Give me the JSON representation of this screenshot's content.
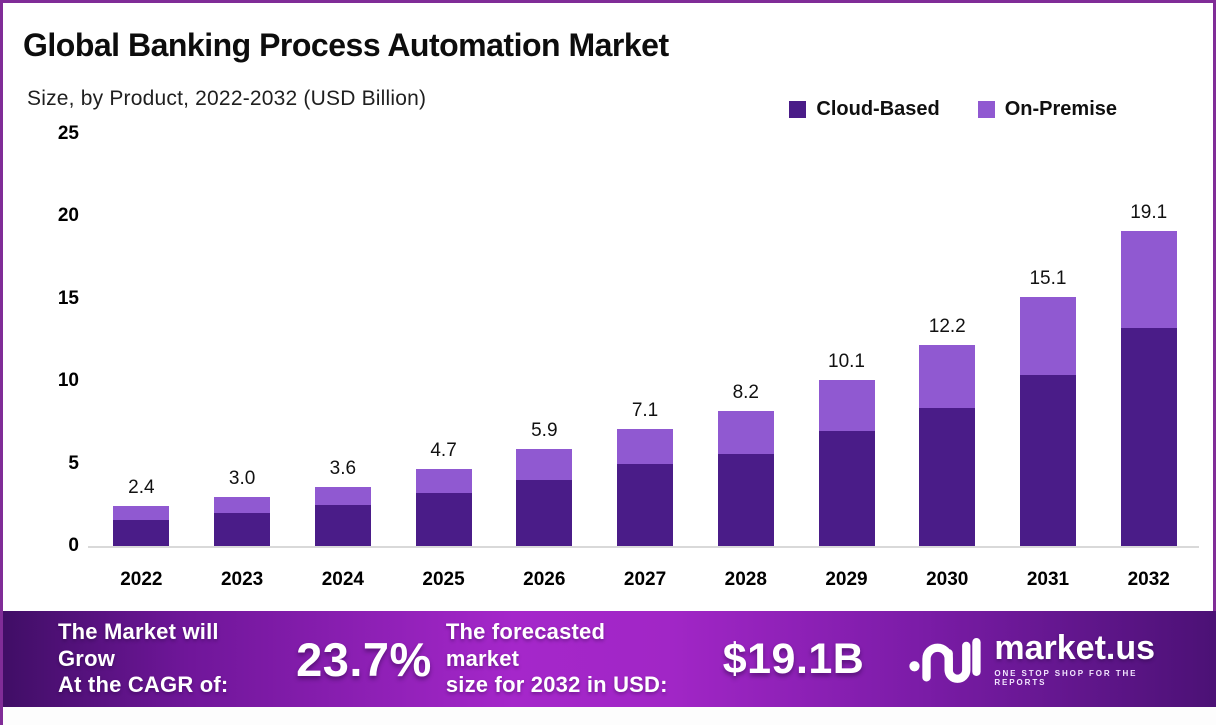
{
  "header": {
    "title": "Global Banking Process Automation Market",
    "subtitle": "Size, by Product, 2022-2032 (USD Billion)"
  },
  "colors": {
    "frame_border": "#802C97",
    "cloud_based": "#4A1C88",
    "on_premise": "#9059D1",
    "banner_left": "#400E66",
    "banner_center": "#A527CA",
    "banner_right": "#4B1175",
    "baseline": "#D9D9D9"
  },
  "legend": {
    "items": [
      {
        "label": "Cloud-Based",
        "color": "#4A1C88"
      },
      {
        "label": "On-Premise",
        "color": "#9059D1"
      }
    ]
  },
  "chart_data": {
    "type": "bar",
    "stacked": true,
    "title": "Global Banking Process Automation Market Size, by Product, 2022-2032 (USD Billion)",
    "categories": [
      "2022",
      "2023",
      "2024",
      "2025",
      "2026",
      "2027",
      "2028",
      "2029",
      "2030",
      "2031",
      "2032"
    ],
    "series": [
      {
        "name": "Cloud-Based",
        "color": "#4A1C88",
        "values": [
          1.6,
          2.0,
          2.5,
          3.2,
          4.0,
          5.0,
          5.6,
          7.0,
          8.4,
          10.4,
          13.2
        ]
      },
      {
        "name": "On-Premise",
        "color": "#9059D1",
        "values": [
          0.8,
          1.0,
          1.1,
          1.5,
          1.9,
          2.1,
          2.6,
          3.1,
          3.8,
          4.7,
          5.9
        ]
      }
    ],
    "totals": [
      2.4,
      3.0,
      3.6,
      4.7,
      5.9,
      7.1,
      8.2,
      10.1,
      12.2,
      15.1,
      19.1
    ],
    "total_labels": [
      "2.4",
      "3.0",
      "3.6",
      "4.7",
      "5.9",
      "7.1",
      "8.2",
      "10.1",
      "12.2",
      "15.1",
      "19.1"
    ],
    "xlabel": "",
    "ylabel": "",
    "ylim": [
      0,
      25
    ],
    "yticks": [
      25,
      20,
      15,
      10,
      5,
      0
    ],
    "grid": false,
    "legend_position": "top-right"
  },
  "banner": {
    "cagr_label_line1": "The Market will Grow",
    "cagr_label_line2": "At the CAGR of:",
    "cagr_value": "23.7%",
    "forecast_label_line1": "The forecasted market",
    "forecast_label_line2": "size for 2032 in USD:",
    "forecast_value": "$19.1B",
    "logo": {
      "name": "market.us",
      "tagline": "ONE STOP SHOP FOR THE REPORTS"
    }
  }
}
